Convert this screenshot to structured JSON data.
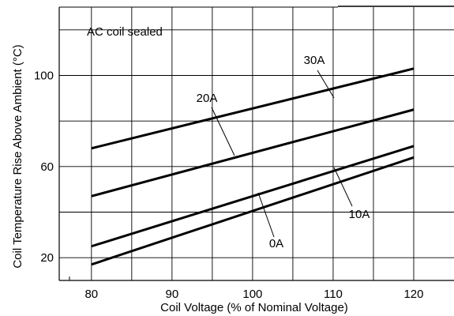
{
  "chart_data": {
    "type": "line",
    "title": "",
    "annotation": "AC coil sealed",
    "xlabel": "Coil Voltage (% of Nominal Voltage)",
    "ylabel": "Coil Temperature Rise Above Ambient (°C)",
    "xlim": [
      76,
      125
    ],
    "ylim": [
      10,
      130
    ],
    "xticks": [
      80,
      90,
      100,
      110,
      120
    ],
    "xtick_labels": [
      "80",
      "90",
      "100",
      "110",
      "120"
    ],
    "yticks": [
      20,
      60,
      100
    ],
    "ytick_labels": [
      "20",
      "60",
      "100"
    ],
    "grid": true,
    "legend": "none",
    "series": [
      {
        "name": "30A",
        "x": [
          80,
          120
        ],
        "y": [
          68,
          103
        ]
      },
      {
        "name": "20A",
        "x": [
          80,
          120
        ],
        "y": [
          47,
          85
        ]
      },
      {
        "name": "10A",
        "x": [
          80,
          120
        ],
        "y": [
          25,
          69
        ]
      },
      {
        "name": "0A",
        "x": [
          80,
          120
        ],
        "y": [
          17,
          64
        ]
      }
    ]
  }
}
